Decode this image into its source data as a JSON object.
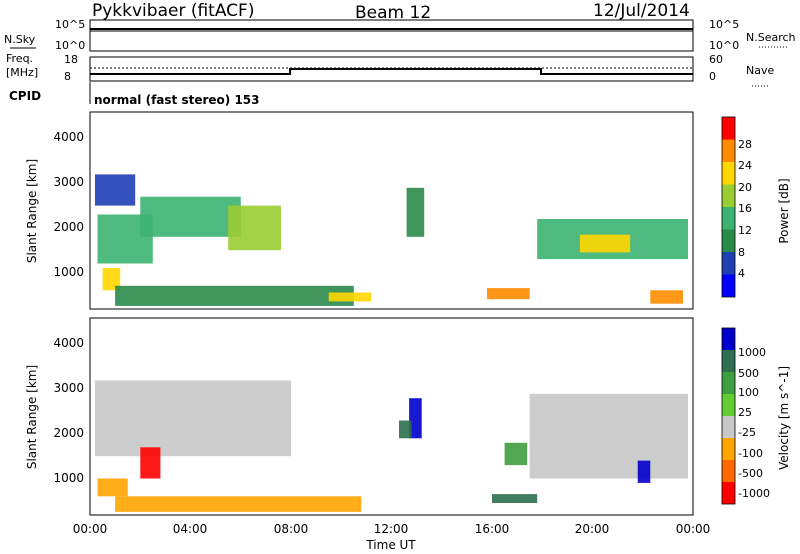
{
  "header": {
    "station": "Pykkvibaer (fitACF)",
    "beam": "Beam 12",
    "date": "12/Jul/2014"
  },
  "noise_panel": {
    "left_label": "N.Sky",
    "left_ticks": [
      "10^5",
      "10^0"
    ],
    "right_ticks": [
      "10^5",
      "10^0"
    ],
    "right_label": "N.Search"
  },
  "freq_panel": {
    "left_label_1": "Freq.",
    "left_label_2": "[MHz]",
    "left_ticks": [
      "18",
      "8"
    ],
    "right_ticks": [
      "60",
      "0"
    ],
    "right_label": "Nave"
  },
  "cpid": {
    "label": "CPID",
    "text": "normal (fast stereo) 153"
  },
  "power_panel": {
    "ylabel": "Slant Range [km]",
    "yticks": [
      "4000",
      "3000",
      "2000",
      "1000"
    ],
    "colorbar_label": "Power [dB]",
    "colorbar_ticks": [
      "28",
      "24",
      "20",
      "16",
      "12",
      "8",
      "4"
    ],
    "colors": [
      "#0000ff",
      "#1f3fb5",
      "#2a8a4a",
      "#3cb371",
      "#9acd32",
      "#ffd700",
      "#ff8c00",
      "#ff0000"
    ]
  },
  "velocity_panel": {
    "ylabel": "Slant Range [km]",
    "yticks": [
      "4000",
      "3000",
      "2000",
      "1000"
    ],
    "colorbar_label": "Velocity [m s^-1]",
    "colorbar_ticks": [
      "1000",
      "500",
      "100",
      "25",
      "-25",
      "-100",
      "-500",
      "-1000"
    ],
    "colors": [
      "#0000cc",
      "#2f6f4f",
      "#3f9f3f",
      "#66cc33",
      "#c8c8c8",
      "#ffa500",
      "#ff6a00",
      "#ff0000"
    ]
  },
  "x_axis": {
    "ticks": [
      "00:00",
      "04:00",
      "08:00",
      "12:00",
      "16:00",
      "20:00",
      "00:00"
    ],
    "label": "Time UT"
  },
  "chart_data": [
    {
      "type": "heatmap",
      "title": "Pykkvibaer (fitACF)",
      "subtitle": "Beam 12 12/Jul/2014",
      "xlabel": "Time UT",
      "ylabel": "Slant Range [km]",
      "x_ticks": [
        "00:00",
        "04:00",
        "08:00",
        "12:00",
        "16:00",
        "20:00",
        "00:00"
      ],
      "ylim": [
        180,
        4600
      ],
      "colorbar": "Power [dB]",
      "clim": [
        0,
        32
      ],
      "cells": [
        {
          "t_start": 0.2,
          "t_end": 1.8,
          "r_start": 2500,
          "r_end": 3200,
          "value": 6
        },
        {
          "t_start": 0.3,
          "t_end": 2.5,
          "r_start": 1200,
          "r_end": 2300,
          "value": 14
        },
        {
          "t_start": 0.5,
          "t_end": 1.2,
          "r_start": 600,
          "r_end": 1100,
          "value": 22
        },
        {
          "t_start": 2.0,
          "t_end": 6.0,
          "r_start": 1800,
          "r_end": 2700,
          "value": 12
        },
        {
          "t_start": 5.5,
          "t_end": 7.6,
          "r_start": 1500,
          "r_end": 2500,
          "value": 16
        },
        {
          "t_start": 1.0,
          "t_end": 10.5,
          "r_start": 250,
          "r_end": 700,
          "value": 10
        },
        {
          "t_start": 9.5,
          "t_end": 11.2,
          "r_start": 350,
          "r_end": 550,
          "value": 22
        },
        {
          "t_start": 12.6,
          "t_end": 13.3,
          "r_start": 1800,
          "r_end": 2900,
          "value": 8
        },
        {
          "t_start": 15.8,
          "t_end": 17.5,
          "r_start": 400,
          "r_end": 650,
          "value": 24
        },
        {
          "t_start": 17.8,
          "t_end": 23.8,
          "r_start": 1300,
          "r_end": 2200,
          "value": 14
        },
        {
          "t_start": 19.5,
          "t_end": 21.5,
          "r_start": 1450,
          "r_end": 1850,
          "value": 22
        },
        {
          "t_start": 22.3,
          "t_end": 23.6,
          "r_start": 300,
          "r_end": 600,
          "value": 24
        }
      ]
    },
    {
      "type": "heatmap",
      "xlabel": "Time UT",
      "ylabel": "Slant Range [km]",
      "x_ticks": [
        "00:00",
        "04:00",
        "08:00",
        "12:00",
        "16:00",
        "20:00",
        "00:00"
      ],
      "ylim": [
        180,
        4600
      ],
      "colorbar": "Velocity [m s^-1]",
      "clim": [
        -1000,
        1000
      ],
      "cells": [
        {
          "t_start": 0.2,
          "t_end": 8.0,
          "r_start": 1500,
          "r_end": 3200,
          "value": 0
        },
        {
          "t_start": 0.3,
          "t_end": 1.5,
          "r_start": 600,
          "r_end": 1000,
          "value": -80
        },
        {
          "t_start": 2.0,
          "t_end": 2.8,
          "r_start": 1000,
          "r_end": 1700,
          "value": -600
        },
        {
          "t_start": 1.0,
          "t_end": 10.8,
          "r_start": 250,
          "r_end": 600,
          "value": -30
        },
        {
          "t_start": 12.7,
          "t_end": 13.2,
          "r_start": 1900,
          "r_end": 2800,
          "value": 800
        },
        {
          "t_start": 12.3,
          "t_end": 12.8,
          "r_start": 1900,
          "r_end": 2300,
          "value": 200
        },
        {
          "t_start": 16.0,
          "t_end": 17.8,
          "r_start": 450,
          "r_end": 650,
          "value": 200
        },
        {
          "t_start": 16.5,
          "t_end": 17.4,
          "r_start": 1300,
          "r_end": 1800,
          "value": 60
        },
        {
          "t_start": 17.5,
          "t_end": 23.8,
          "r_start": 1000,
          "r_end": 2900,
          "value": 0
        },
        {
          "t_start": 21.8,
          "t_end": 22.3,
          "r_start": 900,
          "r_end": 1400,
          "value": 600
        }
      ]
    }
  ]
}
